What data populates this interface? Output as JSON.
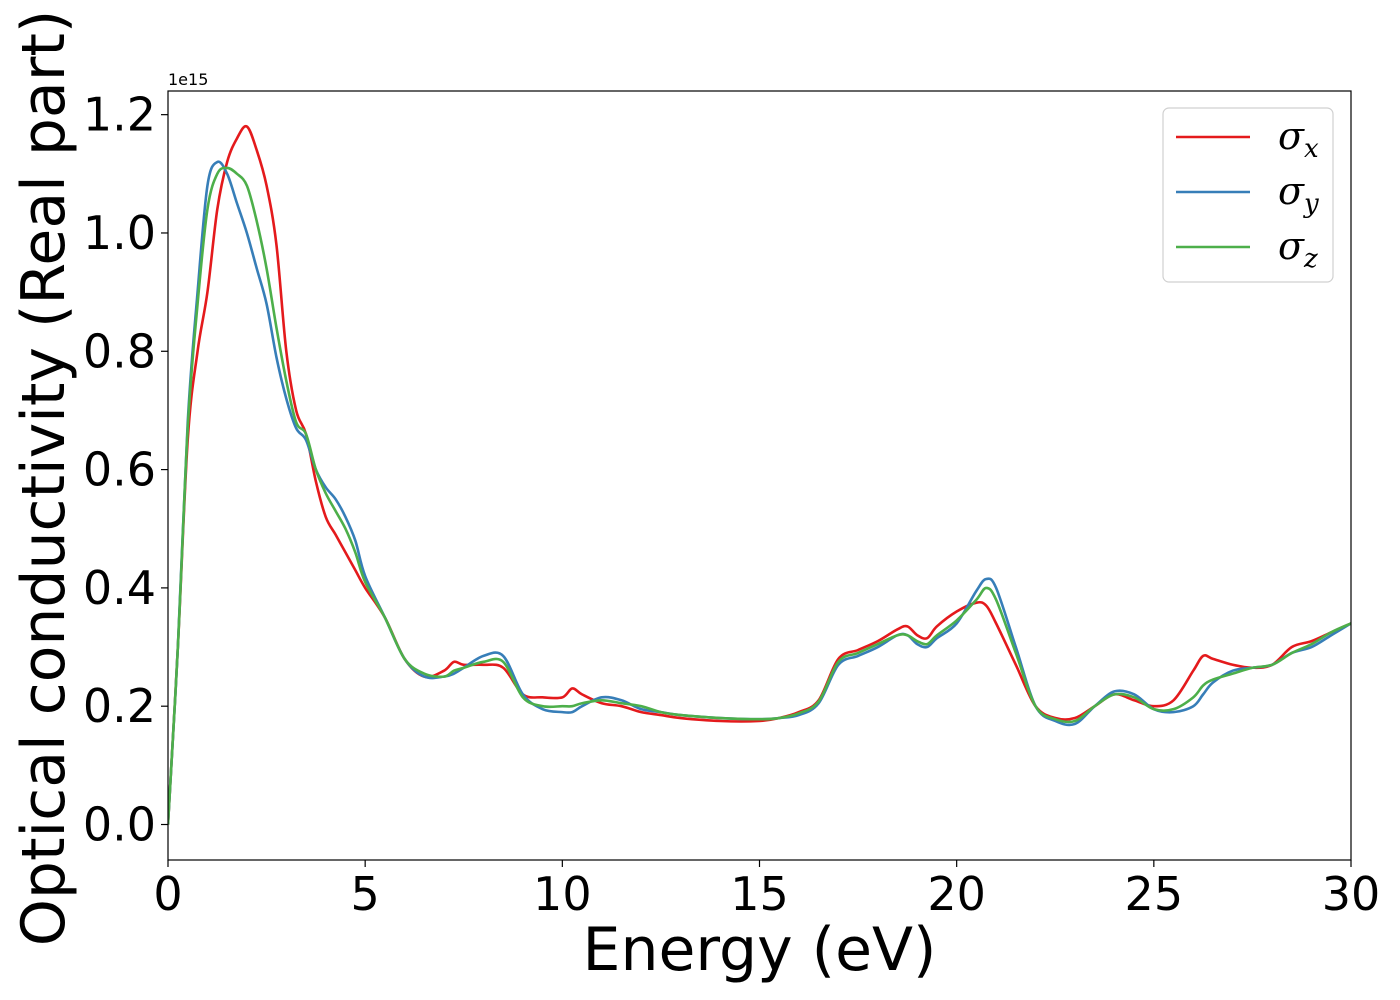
{
  "chart_data": {
    "type": "line",
    "title": "",
    "xlabel": "Energy (eV)",
    "ylabel": "Optical conductivity (Real part)",
    "y_offset_text": "1e15",
    "xlim": [
      0,
      30
    ],
    "ylim": [
      -0.06,
      1.24
    ],
    "x_ticks": [
      0,
      5,
      10,
      15,
      20,
      25,
      30
    ],
    "x_tick_labels": [
      "0",
      "5",
      "10",
      "15",
      "20",
      "25",
      "30"
    ],
    "y_ticks": [
      0.0,
      0.2,
      0.4,
      0.6,
      0.8,
      1.0,
      1.2
    ],
    "y_tick_labels": [
      "0.0",
      "0.2",
      "0.4",
      "0.6",
      "0.8",
      "1.0",
      "1.2"
    ],
    "grid": false,
    "legend_position": "top-right",
    "x": [
      0,
      0.25,
      0.5,
      0.75,
      1.0,
      1.25,
      1.5,
      1.75,
      2.0,
      2.25,
      2.5,
      2.75,
      3.0,
      3.25,
      3.5,
      3.75,
      4.0,
      4.25,
      4.5,
      4.75,
      5.0,
      5.5,
      6.0,
      6.5,
      7.0,
      7.25,
      7.5,
      8.0,
      8.5,
      9.0,
      9.5,
      10.0,
      10.25,
      10.5,
      11.0,
      11.5,
      12.0,
      12.5,
      13.0,
      14.0,
      15.0,
      15.5,
      16.0,
      16.5,
      17.0,
      17.5,
      18.0,
      18.5,
      18.75,
      19.0,
      19.25,
      19.5,
      20.0,
      20.5,
      20.75,
      21.0,
      21.5,
      22.0,
      22.5,
      23.0,
      23.5,
      24.0,
      24.5,
      25.0,
      25.5,
      26.0,
      26.25,
      26.5,
      27.0,
      27.5,
      28.0,
      28.5,
      29.0,
      29.5,
      30.0
    ],
    "series": [
      {
        "name": "σx",
        "label_main": "σ",
        "label_sub": "x",
        "color": "#e41a1c",
        "values": [
          0.0,
          0.3,
          0.65,
          0.8,
          0.9,
          1.04,
          1.12,
          1.16,
          1.18,
          1.14,
          1.08,
          0.98,
          0.8,
          0.7,
          0.66,
          0.58,
          0.52,
          0.49,
          0.46,
          0.43,
          0.4,
          0.35,
          0.28,
          0.25,
          0.26,
          0.275,
          0.27,
          0.27,
          0.265,
          0.22,
          0.215,
          0.215,
          0.23,
          0.22,
          0.205,
          0.2,
          0.19,
          0.185,
          0.18,
          0.175,
          0.175,
          0.18,
          0.19,
          0.21,
          0.28,
          0.295,
          0.31,
          0.33,
          0.335,
          0.32,
          0.315,
          0.335,
          0.36,
          0.375,
          0.37,
          0.34,
          0.27,
          0.2,
          0.18,
          0.18,
          0.2,
          0.22,
          0.21,
          0.2,
          0.21,
          0.26,
          0.285,
          0.28,
          0.27,
          0.265,
          0.27,
          0.3,
          0.31,
          0.325,
          0.34
        ]
      },
      {
        "name": "σy",
        "label_main": "σ",
        "label_sub": "y",
        "color": "#377eb8",
        "values": [
          0.0,
          0.3,
          0.68,
          0.9,
          1.08,
          1.12,
          1.1,
          1.05,
          1.0,
          0.94,
          0.88,
          0.79,
          0.72,
          0.67,
          0.65,
          0.6,
          0.57,
          0.55,
          0.52,
          0.48,
          0.42,
          0.35,
          0.28,
          0.25,
          0.25,
          0.255,
          0.265,
          0.285,
          0.285,
          0.22,
          0.195,
          0.19,
          0.19,
          0.2,
          0.215,
          0.21,
          0.195,
          0.19,
          0.185,
          0.18,
          0.178,
          0.18,
          0.185,
          0.205,
          0.27,
          0.285,
          0.3,
          0.32,
          0.32,
          0.305,
          0.3,
          0.315,
          0.34,
          0.395,
          0.415,
          0.4,
          0.3,
          0.2,
          0.175,
          0.17,
          0.2,
          0.225,
          0.22,
          0.195,
          0.19,
          0.2,
          0.22,
          0.24,
          0.26,
          0.265,
          0.27,
          0.29,
          0.3,
          0.32,
          0.34
        ]
      },
      {
        "name": "σz",
        "label_main": "σ",
        "label_sub": "z",
        "color": "#4daf4a",
        "values": [
          0.0,
          0.3,
          0.67,
          0.88,
          1.04,
          1.1,
          1.11,
          1.1,
          1.08,
          1.02,
          0.94,
          0.84,
          0.75,
          0.68,
          0.66,
          0.6,
          0.56,
          0.53,
          0.5,
          0.46,
          0.41,
          0.35,
          0.28,
          0.255,
          0.25,
          0.26,
          0.265,
          0.275,
          0.275,
          0.215,
          0.2,
          0.2,
          0.2,
          0.205,
          0.21,
          0.205,
          0.2,
          0.19,
          0.185,
          0.18,
          0.178,
          0.18,
          0.188,
          0.208,
          0.275,
          0.29,
          0.305,
          0.32,
          0.32,
          0.31,
          0.305,
          0.32,
          0.345,
          0.38,
          0.4,
          0.38,
          0.29,
          0.2,
          0.178,
          0.175,
          0.2,
          0.22,
          0.215,
          0.195,
          0.195,
          0.215,
          0.235,
          0.245,
          0.255,
          0.265,
          0.27,
          0.29,
          0.305,
          0.325,
          0.34
        ]
      }
    ]
  }
}
